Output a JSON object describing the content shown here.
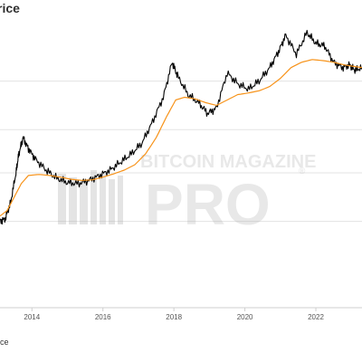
{
  "title_fragment": "rice",
  "legend_fragment": "ice",
  "watermark": {
    "line1": "BITCOIN MAGAZINE",
    "line2": "PRO",
    "registered": "®"
  },
  "chart_data": {
    "type": "line",
    "xlabel": "",
    "ylabel": "",
    "x_ticks": [
      "2014",
      "2016",
      "2018",
      "2020",
      "2022"
    ],
    "xlim": [
      2013.1,
      2023.3
    ],
    "y_scale": "log",
    "ylim": [
      -1.0,
      4.2
    ],
    "y_gridlines": [
      0.6,
      1.5,
      2.3,
      3.2
    ],
    "grid": true,
    "series": [
      {
        "name": "",
        "color": "#000000",
        "points": [
          [
            2013.1,
            0.6
          ],
          [
            2013.25,
            0.65
          ],
          [
            2013.4,
            0.95
          ],
          [
            2013.55,
            1.5
          ],
          [
            2013.63,
            1.85
          ],
          [
            2013.75,
            2.15
          ],
          [
            2013.9,
            1.95
          ],
          [
            2014.1,
            1.75
          ],
          [
            2014.4,
            1.55
          ],
          [
            2014.7,
            1.4
          ],
          [
            2015.0,
            1.32
          ],
          [
            2015.3,
            1.3
          ],
          [
            2015.6,
            1.36
          ],
          [
            2015.9,
            1.45
          ],
          [
            2016.2,
            1.55
          ],
          [
            2016.5,
            1.7
          ],
          [
            2016.8,
            1.85
          ],
          [
            2017.1,
            2.05
          ],
          [
            2017.4,
            2.45
          ],
          [
            2017.7,
            2.9
          ],
          [
            2017.95,
            3.55
          ],
          [
            2018.1,
            3.3
          ],
          [
            2018.4,
            2.95
          ],
          [
            2018.7,
            2.8
          ],
          [
            2018.95,
            2.6
          ],
          [
            2019.2,
            2.7
          ],
          [
            2019.5,
            3.35
          ],
          [
            2019.8,
            3.15
          ],
          [
            2020.1,
            3.05
          ],
          [
            2020.4,
            3.2
          ],
          [
            2020.7,
            3.45
          ],
          [
            2020.95,
            3.75
          ],
          [
            2021.15,
            4.05
          ],
          [
            2021.45,
            3.7
          ],
          [
            2021.75,
            4.1
          ],
          [
            2022.0,
            3.9
          ],
          [
            2022.25,
            3.85
          ],
          [
            2022.5,
            3.55
          ],
          [
            2022.75,
            3.45
          ],
          [
            2022.95,
            3.5
          ],
          [
            2023.1,
            3.4
          ],
          [
            2023.3,
            3.45
          ]
        ]
      },
      {
        "name": "",
        "color": "#f7931a",
        "points": [
          [
            2013.1,
            0.7
          ],
          [
            2013.3,
            0.8
          ],
          [
            2013.5,
            1.05
          ],
          [
            2013.7,
            1.3
          ],
          [
            2013.9,
            1.45
          ],
          [
            2014.2,
            1.47
          ],
          [
            2014.5,
            1.45
          ],
          [
            2014.8,
            1.42
          ],
          [
            2015.1,
            1.38
          ],
          [
            2015.4,
            1.36
          ],
          [
            2015.7,
            1.37
          ],
          [
            2016.0,
            1.42
          ],
          [
            2016.3,
            1.48
          ],
          [
            2016.6,
            1.55
          ],
          [
            2016.9,
            1.65
          ],
          [
            2017.2,
            1.85
          ],
          [
            2017.5,
            2.15
          ],
          [
            2017.8,
            2.55
          ],
          [
            2018.05,
            2.85
          ],
          [
            2018.3,
            2.9
          ],
          [
            2018.6,
            2.87
          ],
          [
            2018.9,
            2.8
          ],
          [
            2019.2,
            2.75
          ],
          [
            2019.5,
            2.85
          ],
          [
            2019.8,
            2.95
          ],
          [
            2020.1,
            2.98
          ],
          [
            2020.4,
            3.02
          ],
          [
            2020.7,
            3.1
          ],
          [
            2021.0,
            3.25
          ],
          [
            2021.3,
            3.45
          ],
          [
            2021.6,
            3.55
          ],
          [
            2021.9,
            3.6
          ],
          [
            2022.2,
            3.58
          ],
          [
            2022.5,
            3.55
          ],
          [
            2022.8,
            3.5
          ],
          [
            2023.1,
            3.47
          ],
          [
            2023.3,
            3.45
          ]
        ]
      }
    ]
  }
}
